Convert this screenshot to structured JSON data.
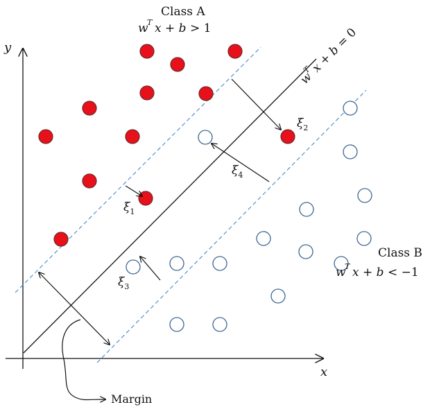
{
  "colors": {
    "class_a_fill": "#e8101a",
    "class_a_stroke": "#6b2a2a",
    "class_b_stroke": "#3d6690",
    "axis": "#111111",
    "margin_line": "#4a86c5"
  },
  "labels": {
    "class_a_title": "Class A",
    "class_a_eq": "w^T x + b > 1",
    "class_b_title": "Class B",
    "class_b_eq": "w^T x + b < −1",
    "hyperplane_eq": "w^T x + b = 0",
    "x_axis": "x",
    "y_axis": "y",
    "margin": "Margin",
    "slack": [
      "ξ1",
      "ξ2",
      "ξ3",
      "ξ4"
    ]
  }
}
